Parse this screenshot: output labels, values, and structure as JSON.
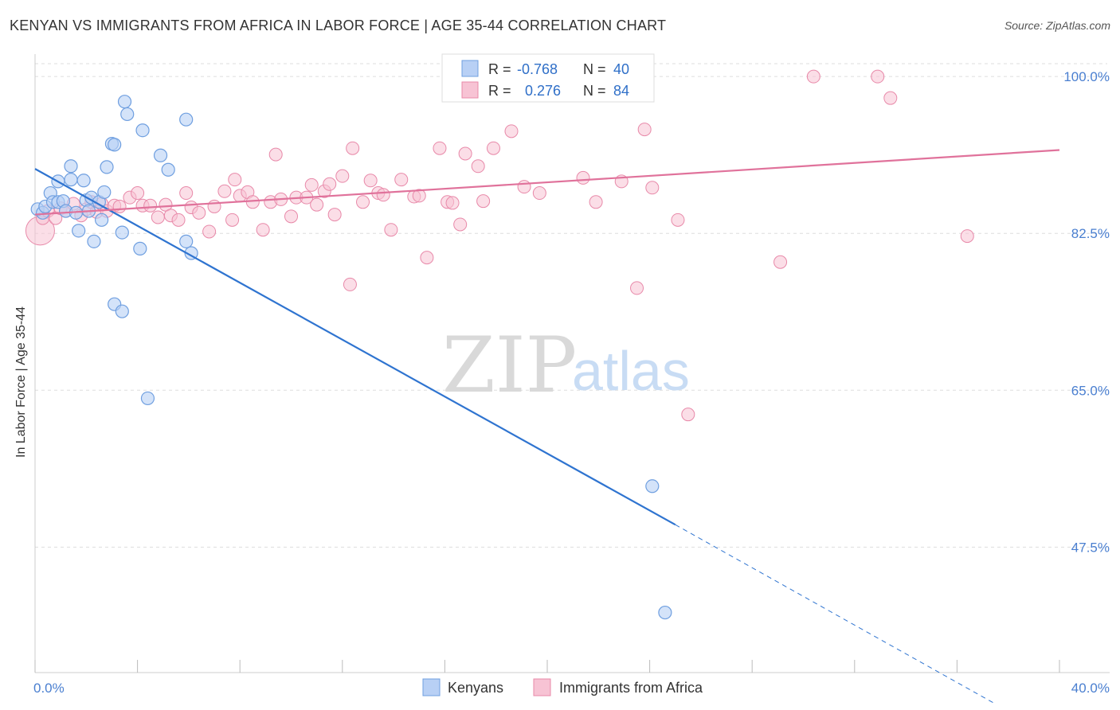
{
  "title": "KENYAN VS IMMIGRANTS FROM AFRICA IN LABOR FORCE | AGE 35-44 CORRELATION CHART",
  "source": "Source: ZipAtlas.com",
  "watermark": {
    "zip": "ZIP",
    "atlas": "atlas"
  },
  "legend_box": {
    "rows": [
      {
        "r_label": "R =",
        "r_value": "-0.768",
        "n_label": "N =",
        "n_value": "40"
      },
      {
        "r_label": "R =",
        "r_value": "0.276",
        "n_label": "N =",
        "n_value": "84"
      }
    ]
  },
  "bottom_legend": {
    "items": [
      "Kenyans",
      "Immigrants from Africa"
    ]
  },
  "colors": {
    "blue_fill": "#b8d0f5",
    "blue_stroke": "#6f9fe0",
    "blue_line": "#2f74d0",
    "pink_fill": "#f7c3d4",
    "pink_stroke": "#e889a9",
    "pink_line": "#e0729b",
    "tick_text": "#4a7fd0",
    "grid": "#dddddd"
  },
  "chart_data": {
    "type": "scatter",
    "title": "KENYAN VS IMMIGRANTS FROM AFRICA IN LABOR FORCE | AGE 35-44 CORRELATION CHART",
    "xlabel": "",
    "ylabel": "In Labor Force | Age 35-44",
    "xlim": [
      0,
      40
    ],
    "ylim": [
      33.5,
      102.5
    ],
    "x_tick_labels": [
      "0.0%",
      "40.0%"
    ],
    "y_ticks": [
      47.5,
      65.0,
      82.5,
      100.0
    ],
    "y_tick_labels": [
      "47.5%",
      "65.0%",
      "82.5%",
      "100.0%"
    ],
    "grid": true,
    "legend_position": "top-center",
    "series": [
      {
        "name": "Kenyans",
        "R": -0.768,
        "N": 40,
        "trend": {
          "x0": 0.0,
          "y0": 89.7,
          "x1": 25.0,
          "y1": 50.0,
          "dash_x1": 37.5,
          "dash_y1": 30.0
        },
        "points": [
          [
            0.1,
            85.2
          ],
          [
            0.3,
            84.8
          ],
          [
            0.4,
            85.5
          ],
          [
            0.6,
            87.0
          ],
          [
            0.7,
            86.0
          ],
          [
            0.9,
            86.0
          ],
          [
            0.9,
            88.3
          ],
          [
            1.1,
            86.1
          ],
          [
            1.2,
            85.0
          ],
          [
            1.4,
            88.5
          ],
          [
            1.4,
            90.0
          ],
          [
            1.6,
            84.8
          ],
          [
            1.7,
            82.8
          ],
          [
            1.9,
            88.4
          ],
          [
            2.0,
            86.2
          ],
          [
            2.1,
            85.0
          ],
          [
            2.2,
            86.5
          ],
          [
            2.3,
            81.6
          ],
          [
            2.5,
            86.0
          ],
          [
            2.6,
            84.0
          ],
          [
            2.7,
            87.1
          ],
          [
            2.8,
            89.9
          ],
          [
            3.0,
            92.5
          ],
          [
            3.1,
            74.6
          ],
          [
            3.1,
            92.4
          ],
          [
            3.4,
            82.6
          ],
          [
            3.4,
            73.8
          ],
          [
            3.5,
            97.2
          ],
          [
            3.6,
            95.8
          ],
          [
            4.1,
            80.8
          ],
          [
            4.2,
            94.0
          ],
          [
            4.4,
            64.1
          ],
          [
            4.9,
            91.2
          ],
          [
            5.2,
            89.6
          ],
          [
            5.9,
            81.6
          ],
          [
            5.9,
            95.2
          ],
          [
            6.1,
            80.3
          ],
          [
            24.1,
            54.3
          ],
          [
            24.6,
            40.2
          ]
        ]
      },
      {
        "name": "Immigrants from Africa",
        "R": 0.276,
        "N": 84,
        "trend": {
          "x0": 0.0,
          "y0": 84.6,
          "x1": 40.0,
          "y1": 91.8
        },
        "points": [
          [
            0.2,
            82.8
          ],
          [
            0.3,
            84.2
          ],
          [
            0.5,
            85.0
          ],
          [
            0.8,
            84.2
          ],
          [
            1.0,
            85.3
          ],
          [
            1.2,
            85.0
          ],
          [
            1.5,
            85.8
          ],
          [
            1.8,
            84.5
          ],
          [
            2.0,
            85.2
          ],
          [
            2.2,
            86.0
          ],
          [
            2.4,
            84.9
          ],
          [
            2.6,
            85.8
          ],
          [
            2.8,
            85.0
          ],
          [
            3.1,
            85.6
          ],
          [
            3.3,
            85.5
          ],
          [
            3.7,
            86.5
          ],
          [
            4.0,
            87.0
          ],
          [
            4.2,
            85.6
          ],
          [
            4.5,
            85.6
          ],
          [
            4.8,
            84.3
          ],
          [
            5.1,
            85.7
          ],
          [
            5.3,
            84.5
          ],
          [
            5.6,
            84.0
          ],
          [
            5.9,
            87.0
          ],
          [
            6.1,
            85.4
          ],
          [
            6.4,
            84.8
          ],
          [
            6.8,
            82.7
          ],
          [
            7.0,
            85.5
          ],
          [
            7.4,
            87.2
          ],
          [
            7.7,
            84.0
          ],
          [
            7.8,
            88.5
          ],
          [
            8.0,
            86.7
          ],
          [
            8.3,
            87.1
          ],
          [
            8.5,
            86.0
          ],
          [
            8.9,
            82.9
          ],
          [
            9.2,
            86.0
          ],
          [
            9.4,
            91.3
          ],
          [
            9.6,
            86.3
          ],
          [
            10.0,
            84.4
          ],
          [
            10.2,
            86.5
          ],
          [
            10.6,
            86.5
          ],
          [
            10.8,
            87.9
          ],
          [
            11.0,
            85.7
          ],
          [
            11.3,
            87.2
          ],
          [
            11.5,
            88.0
          ],
          [
            11.7,
            84.6
          ],
          [
            12.0,
            88.9
          ],
          [
            12.3,
            76.8
          ],
          [
            12.4,
            92.0
          ],
          [
            12.8,
            86.0
          ],
          [
            13.1,
            88.4
          ],
          [
            13.4,
            87.0
          ],
          [
            13.6,
            86.8
          ],
          [
            13.9,
            82.9
          ],
          [
            14.3,
            88.5
          ],
          [
            14.8,
            86.6
          ],
          [
            15.0,
            86.7
          ],
          [
            15.3,
            79.8
          ],
          [
            15.8,
            92.0
          ],
          [
            16.1,
            86.0
          ],
          [
            16.3,
            85.9
          ],
          [
            16.6,
            83.5
          ],
          [
            16.8,
            91.4
          ],
          [
            17.3,
            90.0
          ],
          [
            17.5,
            86.1
          ],
          [
            17.9,
            92.0
          ],
          [
            18.6,
            93.9
          ],
          [
            19.1,
            87.7
          ],
          [
            19.7,
            87.0
          ],
          [
            20.4,
            100.0
          ],
          [
            21.4,
            88.7
          ],
          [
            21.9,
            86.0
          ],
          [
            22.9,
            88.3
          ],
          [
            23.5,
            76.4
          ],
          [
            23.8,
            94.1
          ],
          [
            24.1,
            87.6
          ],
          [
            25.1,
            84.0
          ],
          [
            25.5,
            62.3
          ],
          [
            29.1,
            79.3
          ],
          [
            30.4,
            100.0
          ],
          [
            32.9,
            100.0
          ],
          [
            33.4,
            97.6
          ],
          [
            36.4,
            82.2
          ]
        ]
      }
    ]
  }
}
